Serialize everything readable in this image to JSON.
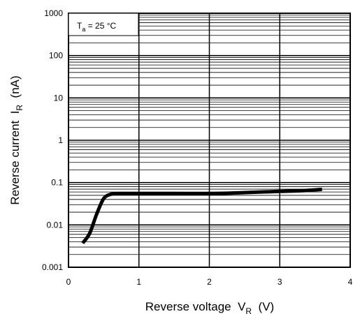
{
  "chart_data": {
    "type": "line",
    "xlabel": {
      "main": "Reverse voltage  V",
      "sub": "R",
      "unit": "  (V)"
    },
    "ylabel": {
      "main": "Reverse current  I",
      "sub": "R",
      "unit": "  (nA)"
    },
    "x_ticks": [
      "0",
      "1",
      "2",
      "3",
      "4"
    ],
    "y_ticks": [
      "1000",
      "100",
      "10",
      "1",
      "0.1",
      "0.01",
      "0.001"
    ],
    "xlim": [
      0,
      4
    ],
    "ylim": [
      0.001,
      1000
    ],
    "y_scale": "log",
    "grid": true,
    "annotation": {
      "main": "T",
      "sub": "a",
      "rest": " = 25 °C"
    },
    "series": [
      {
        "x": [
          0.2,
          0.3,
          0.4,
          0.5,
          0.6,
          0.7,
          1.0,
          1.5,
          2.0,
          2.5,
          3.0,
          3.3,
          3.6
        ],
        "y": [
          0.0037,
          0.0063,
          0.018,
          0.042,
          0.053,
          0.055,
          0.055,
          0.055,
          0.055,
          0.058,
          0.062,
          0.064,
          0.069
        ],
        "color": "#000000"
      }
    ]
  }
}
